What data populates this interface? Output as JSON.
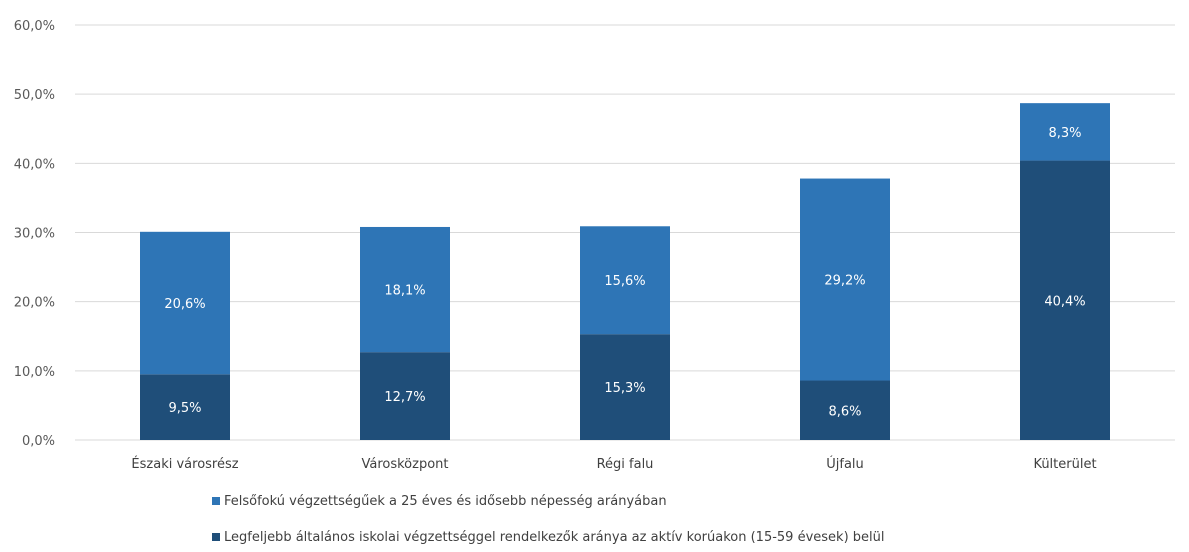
{
  "chart_data": {
    "type": "bar",
    "stacked": true,
    "categories": [
      "Északi városrész",
      "Városközpont",
      "Régi falu",
      "Újfalu",
      "Külterület"
    ],
    "series": [
      {
        "name": "Legfeljebb általános iskolai végzettséggel rendelkezők aránya az aktív korúakon (15-59 évesek) belül",
        "color": "#1f4e79",
        "values": [
          9.5,
          12.7,
          15.3,
          8.6,
          40.4
        ],
        "labels": [
          "9,5%",
          "12,7%",
          "15,3%",
          "8,6%",
          "40,4%"
        ]
      },
      {
        "name": "Felsőfokú végzettségűek a 25 éves és idősebb népesség arányában",
        "color": "#2e75b6",
        "values": [
          20.6,
          18.1,
          15.6,
          29.2,
          8.3
        ],
        "labels": [
          "20,6%",
          "18,1%",
          "15,6%",
          "29,2%",
          "8,3%"
        ]
      }
    ],
    "ylim": [
      0,
      60
    ],
    "yticks": [
      0,
      10,
      20,
      30,
      40,
      50,
      60
    ],
    "ytick_labels": [
      "0,0%",
      "10,0%",
      "20,0%",
      "30,0%",
      "40,0%",
      "50,0%",
      "60,0%"
    ],
    "grid": true,
    "legend_position": "bottom"
  },
  "legend": {
    "top_label": "Felsőfokú végzettségűek a 25 éves és idősebb népesség arányában",
    "bottom_label": "Legfeljebb általános iskolai végzettséggel rendelkezők aránya az aktív korúakon (15-59 évesek) belül",
    "top_color": "#2e75b6",
    "bottom_color": "#1f4e79"
  }
}
